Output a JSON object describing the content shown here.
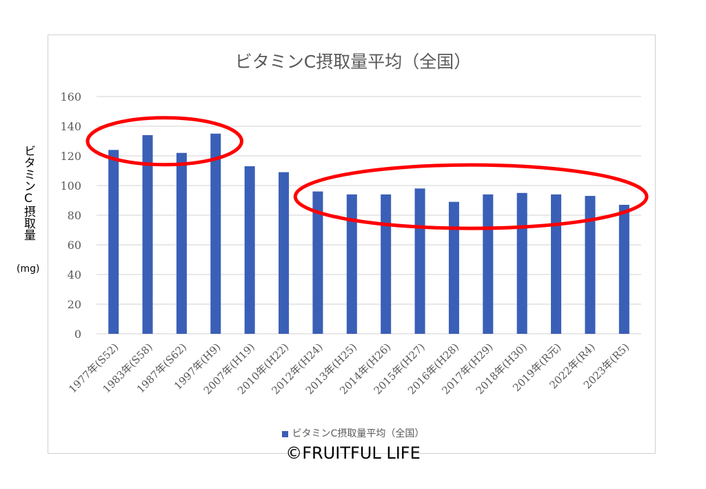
{
  "chart_data": {
    "type": "bar",
    "title": "ビタミンC摂取量平均（全国）",
    "ylabel": "ビタミンC摂取量",
    "yunit": "(mg)",
    "ylim": [
      0,
      160
    ],
    "yticks": [
      0,
      20,
      40,
      60,
      80,
      100,
      120,
      140,
      160
    ],
    "grid": true,
    "legend_position": "bottom",
    "categories": [
      "1977年(S52)",
      "1983年(S58)",
      "1987年(S62)",
      "1997年(H9)",
      "2007年(H19)",
      "2010年(H22)",
      "2012年(H24)",
      "2013年(H25)",
      "2014年(H26)",
      "2015年(H27)",
      "2016年(H28)",
      "2017年(H29)",
      "2018年(H30)",
      "2019年(R元)",
      "2022年(R4)",
      "2023年(R5)"
    ],
    "series": [
      {
        "name": "ビタミンC摂取量平均（全国）",
        "color": "#3a5fb7",
        "values": [
          124,
          134,
          122,
          135,
          113,
          109,
          96,
          94,
          94,
          98,
          89,
          94,
          95,
          94,
          93,
          87
        ]
      }
    ],
    "annotations": [
      {
        "type": "ellipse",
        "color": "#ff0000",
        "encloses": [
          "1977年(S52)",
          "1997年(H9)"
        ]
      },
      {
        "type": "ellipse",
        "color": "#ff0000",
        "encloses": [
          "2012年(H24)",
          "2023年(R5)"
        ]
      }
    ]
  },
  "credit": "©FRUITFUL LIFE"
}
